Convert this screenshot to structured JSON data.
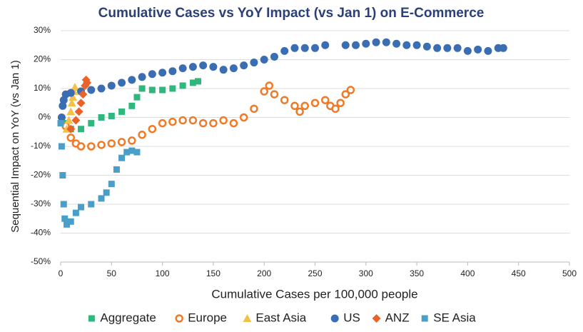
{
  "chart_data": {
    "type": "scatter",
    "title": "Cumulative Cases vs YoY Impact (vs Jan 1) on E-Commerce",
    "x_label": "Cumulative Cases per 100,000 people",
    "y_label": "Sequential Impact on YoY (vs Jan 1)",
    "xlim": [
      0,
      500
    ],
    "xticks": [
      0,
      50,
      100,
      150,
      200,
      250,
      300,
      350,
      400,
      450,
      500
    ],
    "ylim": [
      -50,
      30
    ],
    "yticks": [
      {
        "value": -50,
        "label": "-50%"
      },
      {
        "value": -40,
        "label": "-40%"
      },
      {
        "value": -30,
        "label": "-30%"
      },
      {
        "value": -20,
        "label": "-20%"
      },
      {
        "value": -10,
        "label": "-10%"
      },
      {
        "value": 0,
        "label": "0%"
      },
      {
        "value": 10,
        "label": "10%"
      },
      {
        "value": 20,
        "label": "20%"
      },
      {
        "value": 30,
        "label": "30%"
      }
    ],
    "grid": true,
    "legend": "bottom",
    "series": [
      {
        "name": "Aggregate",
        "color": "#2fb77e",
        "marker": "square",
        "filled": true,
        "x": [
          5,
          10,
          20,
          30,
          40,
          50,
          60,
          70,
          75,
          80,
          90,
          100,
          110,
          120,
          130,
          135
        ],
        "values": [
          -2,
          -4,
          -4,
          -2,
          0,
          0.5,
          2,
          4,
          7,
          10,
          9.5,
          9.5,
          10,
          11,
          12,
          12.5
        ]
      },
      {
        "name": "Europe",
        "color": "#f07a26",
        "marker": "circle",
        "filled": false,
        "x": [
          5,
          10,
          15,
          20,
          30,
          40,
          50,
          60,
          70,
          80,
          90,
          100,
          110,
          120,
          130,
          140,
          150,
          160,
          170,
          180,
          190,
          200,
          205,
          210,
          220,
          230,
          235,
          240,
          250,
          260,
          265,
          270,
          275,
          280,
          285
        ],
        "values": [
          -3,
          -7,
          -9,
          -10,
          -10,
          -9.5,
          -9,
          -8.5,
          -8,
          -6,
          -4,
          -2,
          -1.5,
          -1,
          -1,
          -2,
          -2,
          -1,
          -2,
          0,
          3,
          9,
          11,
          8,
          6,
          4,
          2,
          4,
          5,
          6,
          4,
          3,
          5,
          8,
          9.5
        ]
      },
      {
        "name": "East Asia",
        "color": "#f2c14a",
        "marker": "triangle",
        "filled": true,
        "x": [
          6,
          8,
          10,
          11,
          12,
          13,
          14
        ],
        "values": [
          -4,
          -1,
          2,
          5,
          7,
          9,
          10.5
        ]
      },
      {
        "name": "US",
        "color": "#3b6db3",
        "marker": "circle",
        "filled": true,
        "x": [
          1,
          2,
          3,
          5,
          10,
          20,
          30,
          40,
          50,
          60,
          70,
          80,
          90,
          100,
          110,
          120,
          130,
          140,
          150,
          160,
          170,
          180,
          190,
          200,
          210,
          220,
          230,
          240,
          250,
          260,
          280,
          290,
          300,
          310,
          320,
          330,
          340,
          350,
          360,
          370,
          380,
          390,
          400,
          410,
          420,
          430,
          435
        ],
        "values": [
          0,
          4,
          6,
          8,
          8.5,
          9,
          9.5,
          10,
          11,
          12,
          13,
          14,
          15,
          15.5,
          16,
          17,
          17.5,
          18,
          17.5,
          16.5,
          17,
          18,
          19,
          20,
          21,
          23,
          24,
          24,
          24,
          25,
          25,
          25,
          25.5,
          26,
          26,
          25.5,
          25,
          25,
          24.5,
          24,
          24,
          24,
          23,
          23.5,
          23,
          24,
          24
        ]
      },
      {
        "name": "ANZ",
        "color": "#e8622a",
        "marker": "diamond",
        "filled": true,
        "x": [
          10,
          15,
          18,
          20,
          22,
          24,
          25,
          26
        ],
        "values": [
          -4,
          -1,
          2,
          5,
          8,
          11,
          13,
          12
        ]
      },
      {
        "name": "SE Asia",
        "color": "#4a9fc9",
        "marker": "square",
        "filled": true,
        "x": [
          0,
          1,
          2,
          3,
          4,
          6,
          10,
          15,
          20,
          30,
          40,
          45,
          50,
          55,
          60,
          65,
          70,
          75
        ],
        "values": [
          -2,
          -10,
          -20,
          -30,
          -35,
          -37,
          -36,
          -33,
          -31,
          -30,
          -28,
          -26,
          -23,
          -18,
          -14,
          -12,
          -11.5,
          -12
        ]
      }
    ]
  }
}
